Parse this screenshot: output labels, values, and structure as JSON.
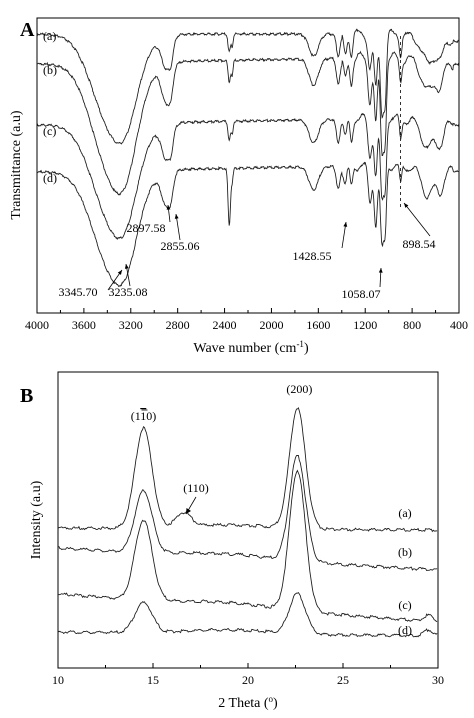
{
  "chart_data": [
    {
      "type": "line",
      "panel_label": "A",
      "xlabel": "Wave number (cm",
      "xlabel_sup": "-1",
      "xlabel_close": ")",
      "ylabel": "Transmittance (a.u)",
      "xlim": [
        4000,
        400
      ],
      "x_reversed": true,
      "ticks": [
        "4000",
        "3600",
        "3200",
        "2800",
        "2400",
        "2000",
        "1600",
        "1200",
        "800",
        "400"
      ],
      "tick_values": [
        4000,
        3600,
        3200,
        2800,
        2400,
        2000,
        1600,
        1200,
        800,
        400
      ],
      "series": [
        {
          "name": "(a)"
        },
        {
          "name": "(b)"
        },
        {
          "name": "(c)"
        },
        {
          "name": "(d)"
        }
      ],
      "annotations": [
        "3345.70",
        "3235.08",
        "2897.58",
        "2855.06",
        "1428.55",
        "1058.07",
        "898.54"
      ],
      "annotation_x": [
        3345.7,
        3235.08,
        2897.58,
        2855.06,
        1428.55,
        1058.07,
        898.54
      ],
      "dashed_marker_x": 898.54,
      "grid": false
    },
    {
      "type": "line",
      "panel_label": "B",
      "xlabel": "2 Theta (",
      "xlabel_sup": "o",
      "xlabel_close": ")",
      "ylabel": "Intensity (a.u)",
      "xlim": [
        10,
        30
      ],
      "ticks": [
        "10",
        "15",
        "20",
        "25",
        "30"
      ],
      "tick_values": [
        10,
        15,
        20,
        25,
        30
      ],
      "series": [
        {
          "name": "(a)"
        },
        {
          "name": "(b)"
        },
        {
          "name": "(c)"
        },
        {
          "name": "(d)"
        }
      ],
      "peaks": [
        {
          "label_pre": "(1",
          "label_bar": "1",
          "label_post": "0)",
          "x": 14.5
        },
        {
          "label": "(110)",
          "x": 16.5
        },
        {
          "label": "(200)",
          "x": 22.6
        }
      ],
      "grid": false
    }
  ]
}
